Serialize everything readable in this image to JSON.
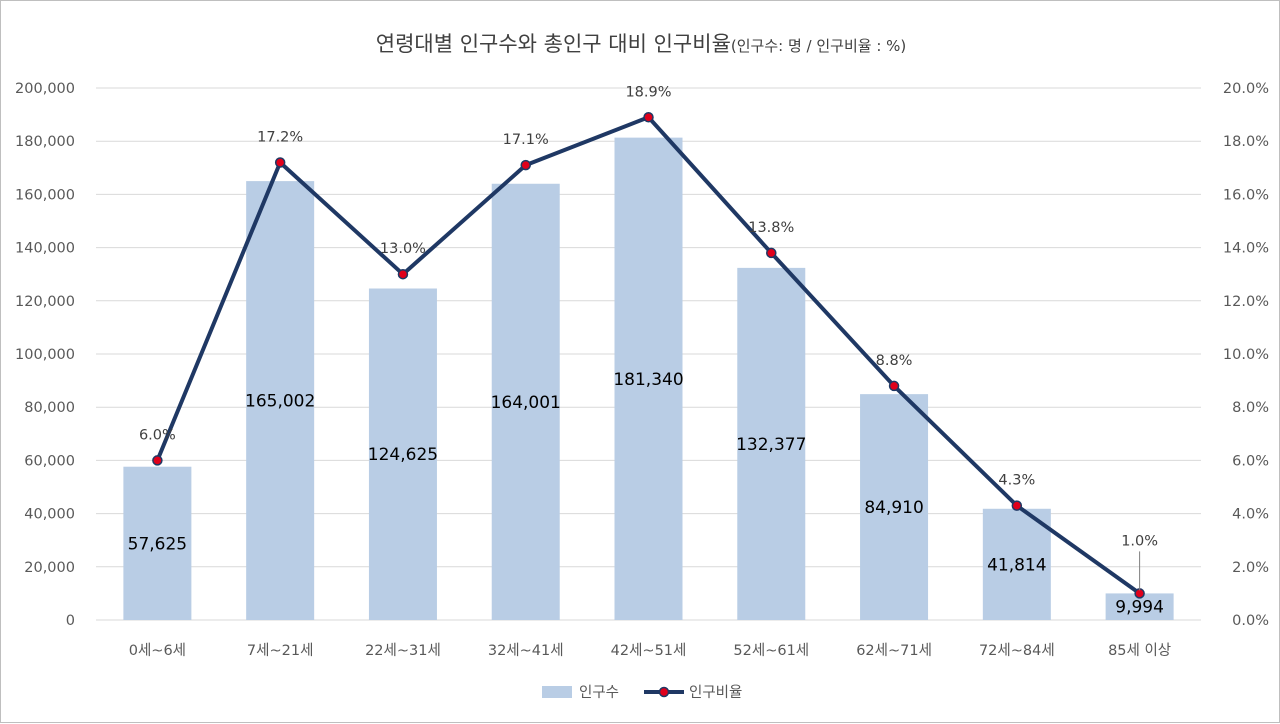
{
  "chart_data": {
    "type": "bar",
    "title": "연령대별 인구수와 총인구 대비 인구비율",
    "subtitle": "(인구수: 명 / 인구비율 : %)",
    "categories": [
      "0세~6세",
      "7세~21세",
      "22세~31세",
      "32세~41세",
      "42세~51세",
      "52세~61세",
      "62세~71세",
      "72세~84세",
      "85세 이상"
    ],
    "series": [
      {
        "name": "인구수",
        "type": "bar",
        "axis": "left",
        "color": "#b9cde5",
        "values": [
          57625,
          165002,
          124625,
          164001,
          181340,
          132377,
          84910,
          41814,
          9994
        ],
        "labels": [
          "57,625",
          "165,002",
          "124,625",
          "164,001",
          "181,340",
          "132,377",
          "84,910",
          "41,814",
          "9,994"
        ]
      },
      {
        "name": "인구비율",
        "type": "line",
        "axis": "right",
        "color": "#1f3864",
        "marker_color": "#e0001b",
        "values": [
          6.0,
          17.2,
          13.0,
          17.1,
          18.9,
          13.8,
          8.8,
          4.3,
          1.0
        ],
        "labels": [
          "6.0%",
          "17.2%",
          "13.0%",
          "17.1%",
          "18.9%",
          "13.8%",
          "8.8%",
          "4.3%",
          "1.0%"
        ]
      }
    ],
    "y_left": {
      "range": [
        0,
        200000
      ],
      "ticks": [
        0,
        20000,
        40000,
        60000,
        80000,
        100000,
        120000,
        140000,
        160000,
        180000,
        200000
      ],
      "tick_labels": [
        "0",
        "20,000",
        "40,000",
        "60,000",
        "80,000",
        "100,000",
        "120,000",
        "140,000",
        "160,000",
        "180,000",
        "200,000"
      ]
    },
    "y_right": {
      "range": [
        0,
        20
      ],
      "ticks": [
        0,
        2,
        4,
        6,
        8,
        10,
        12,
        14,
        16,
        18,
        20
      ],
      "tick_labels": [
        "0.0%",
        "2.0%",
        "4.0%",
        "6.0%",
        "8.0%",
        "10.0%",
        "12.0%",
        "14.0%",
        "16.0%",
        "18.0%",
        "20.0%"
      ]
    },
    "grid": true,
    "legend_position": "bottom"
  }
}
